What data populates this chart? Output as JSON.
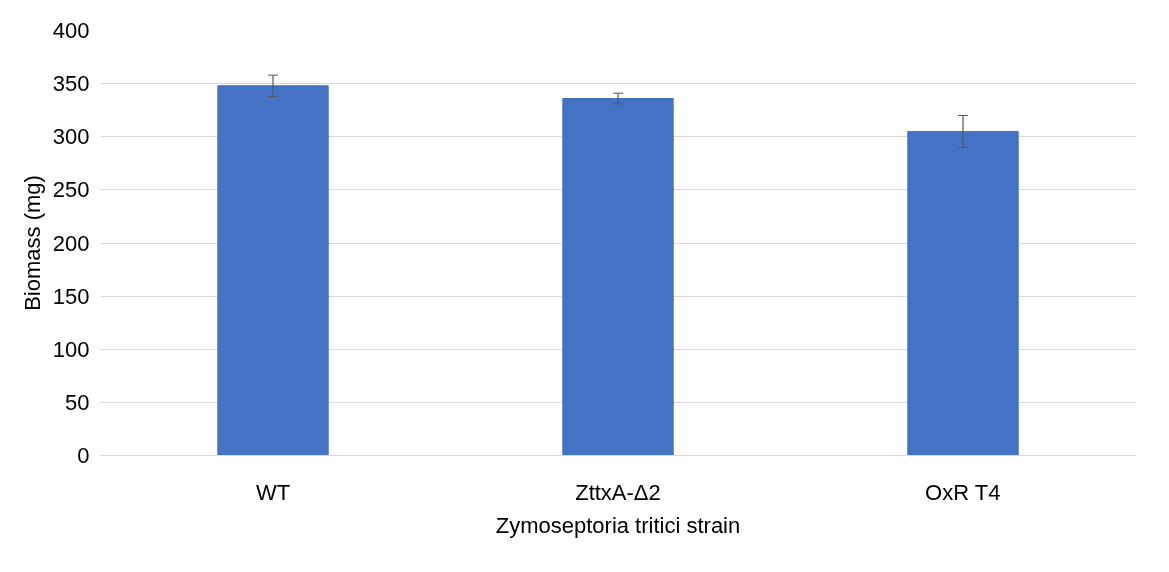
{
  "chart_data": {
    "type": "bar",
    "xlabel": "Zymoseptoria tritici strain",
    "ylabel": "Biomass (mg)",
    "categories": [
      "WT",
      "ZttxA-Δ2",
      "OxR T4"
    ],
    "values": [
      348,
      336,
      305
    ],
    "errors": [
      10,
      5,
      15
    ],
    "color": "#4472c4",
    "ylim": [
      0,
      400
    ],
    "yticks": [
      0,
      50,
      100,
      150,
      200,
      250,
      300,
      350,
      400
    ],
    "grid": "y"
  }
}
